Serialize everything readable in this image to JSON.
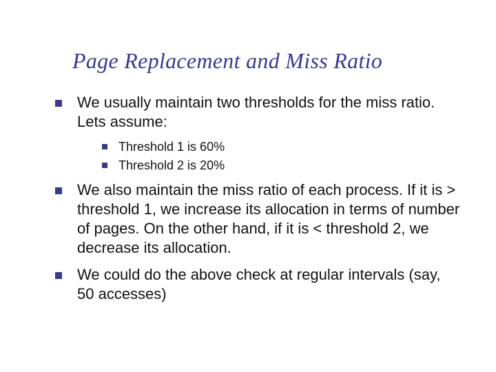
{
  "title": "Page Replacement and Miss Ratio",
  "colors": {
    "title_color": "#3a3a8a",
    "bullet_color": "#3a3a8a",
    "body_text_color": "#111111",
    "background_color": "#ffffff"
  },
  "typography": {
    "title_font": "Georgia, serif, italic",
    "title_fontsize_pt": 24,
    "body_font": "Verdana, sans-serif",
    "level1_fontsize_pt": 17,
    "level2_fontsize_pt": 14
  },
  "bullets": [
    {
      "text": "We usually maintain two thresholds for the miss ratio. Lets assume:",
      "sub": [
        {
          "text": "Threshold 1 is 60%"
        },
        {
          "text": "Threshold 2 is 20%"
        }
      ]
    },
    {
      "text": "We also maintain the miss ratio of each process. If it is > threshold 1, we increase its allocation in terms of number of pages. On the other hand, if it is < threshold 2, we decrease its allocation."
    },
    {
      "text": "We could do the above check at regular intervals (say, 50 accesses)"
    }
  ]
}
